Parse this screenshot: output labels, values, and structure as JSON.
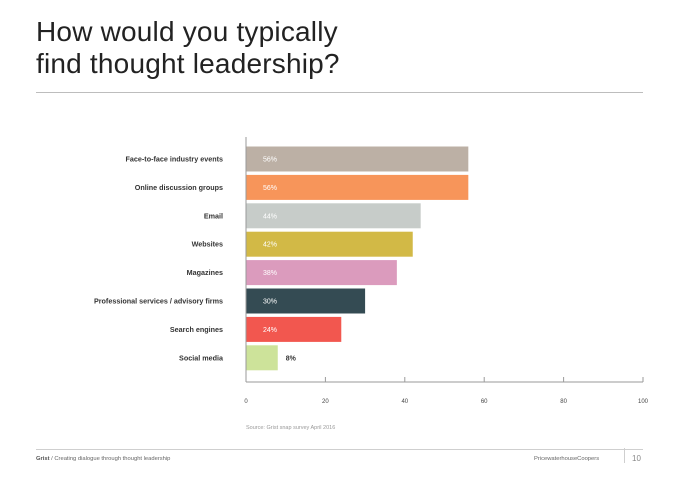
{
  "title": {
    "line1": "How would you typically",
    "line2": "find thought leadership?"
  },
  "chart_data": {
    "type": "bar",
    "orientation": "horizontal",
    "categories": [
      "Face-to-face industry events",
      "Online discussion groups",
      "Email",
      "Websites",
      "Magazines",
      "Professional services / advisory firms",
      "Search engines",
      "Social media"
    ],
    "values": [
      56,
      56,
      44,
      42,
      38,
      30,
      24,
      8
    ],
    "value_labels": [
      "56%",
      "56%",
      "44%",
      "42%",
      "38%",
      "30%",
      "24%",
      "8%"
    ],
    "colors": [
      "#bcb0a5",
      "#f7955a",
      "#c7ccc9",
      "#d2b946",
      "#db9bbd",
      "#344b53",
      "#f2574f",
      "#cde39a"
    ],
    "xlim": [
      0,
      100
    ],
    "xticks": [
      0,
      20,
      40,
      60,
      80,
      100
    ],
    "title": "",
    "xlabel": "",
    "ylabel": "",
    "grid": false,
    "legend": "none"
  },
  "source": "Source: Grist snap survey April 2016",
  "footer": {
    "brand": "Grist",
    "tagline": " / Creating dialogue through thought leadership",
    "company": "PricewaterhouseCoopers",
    "page": "10"
  }
}
